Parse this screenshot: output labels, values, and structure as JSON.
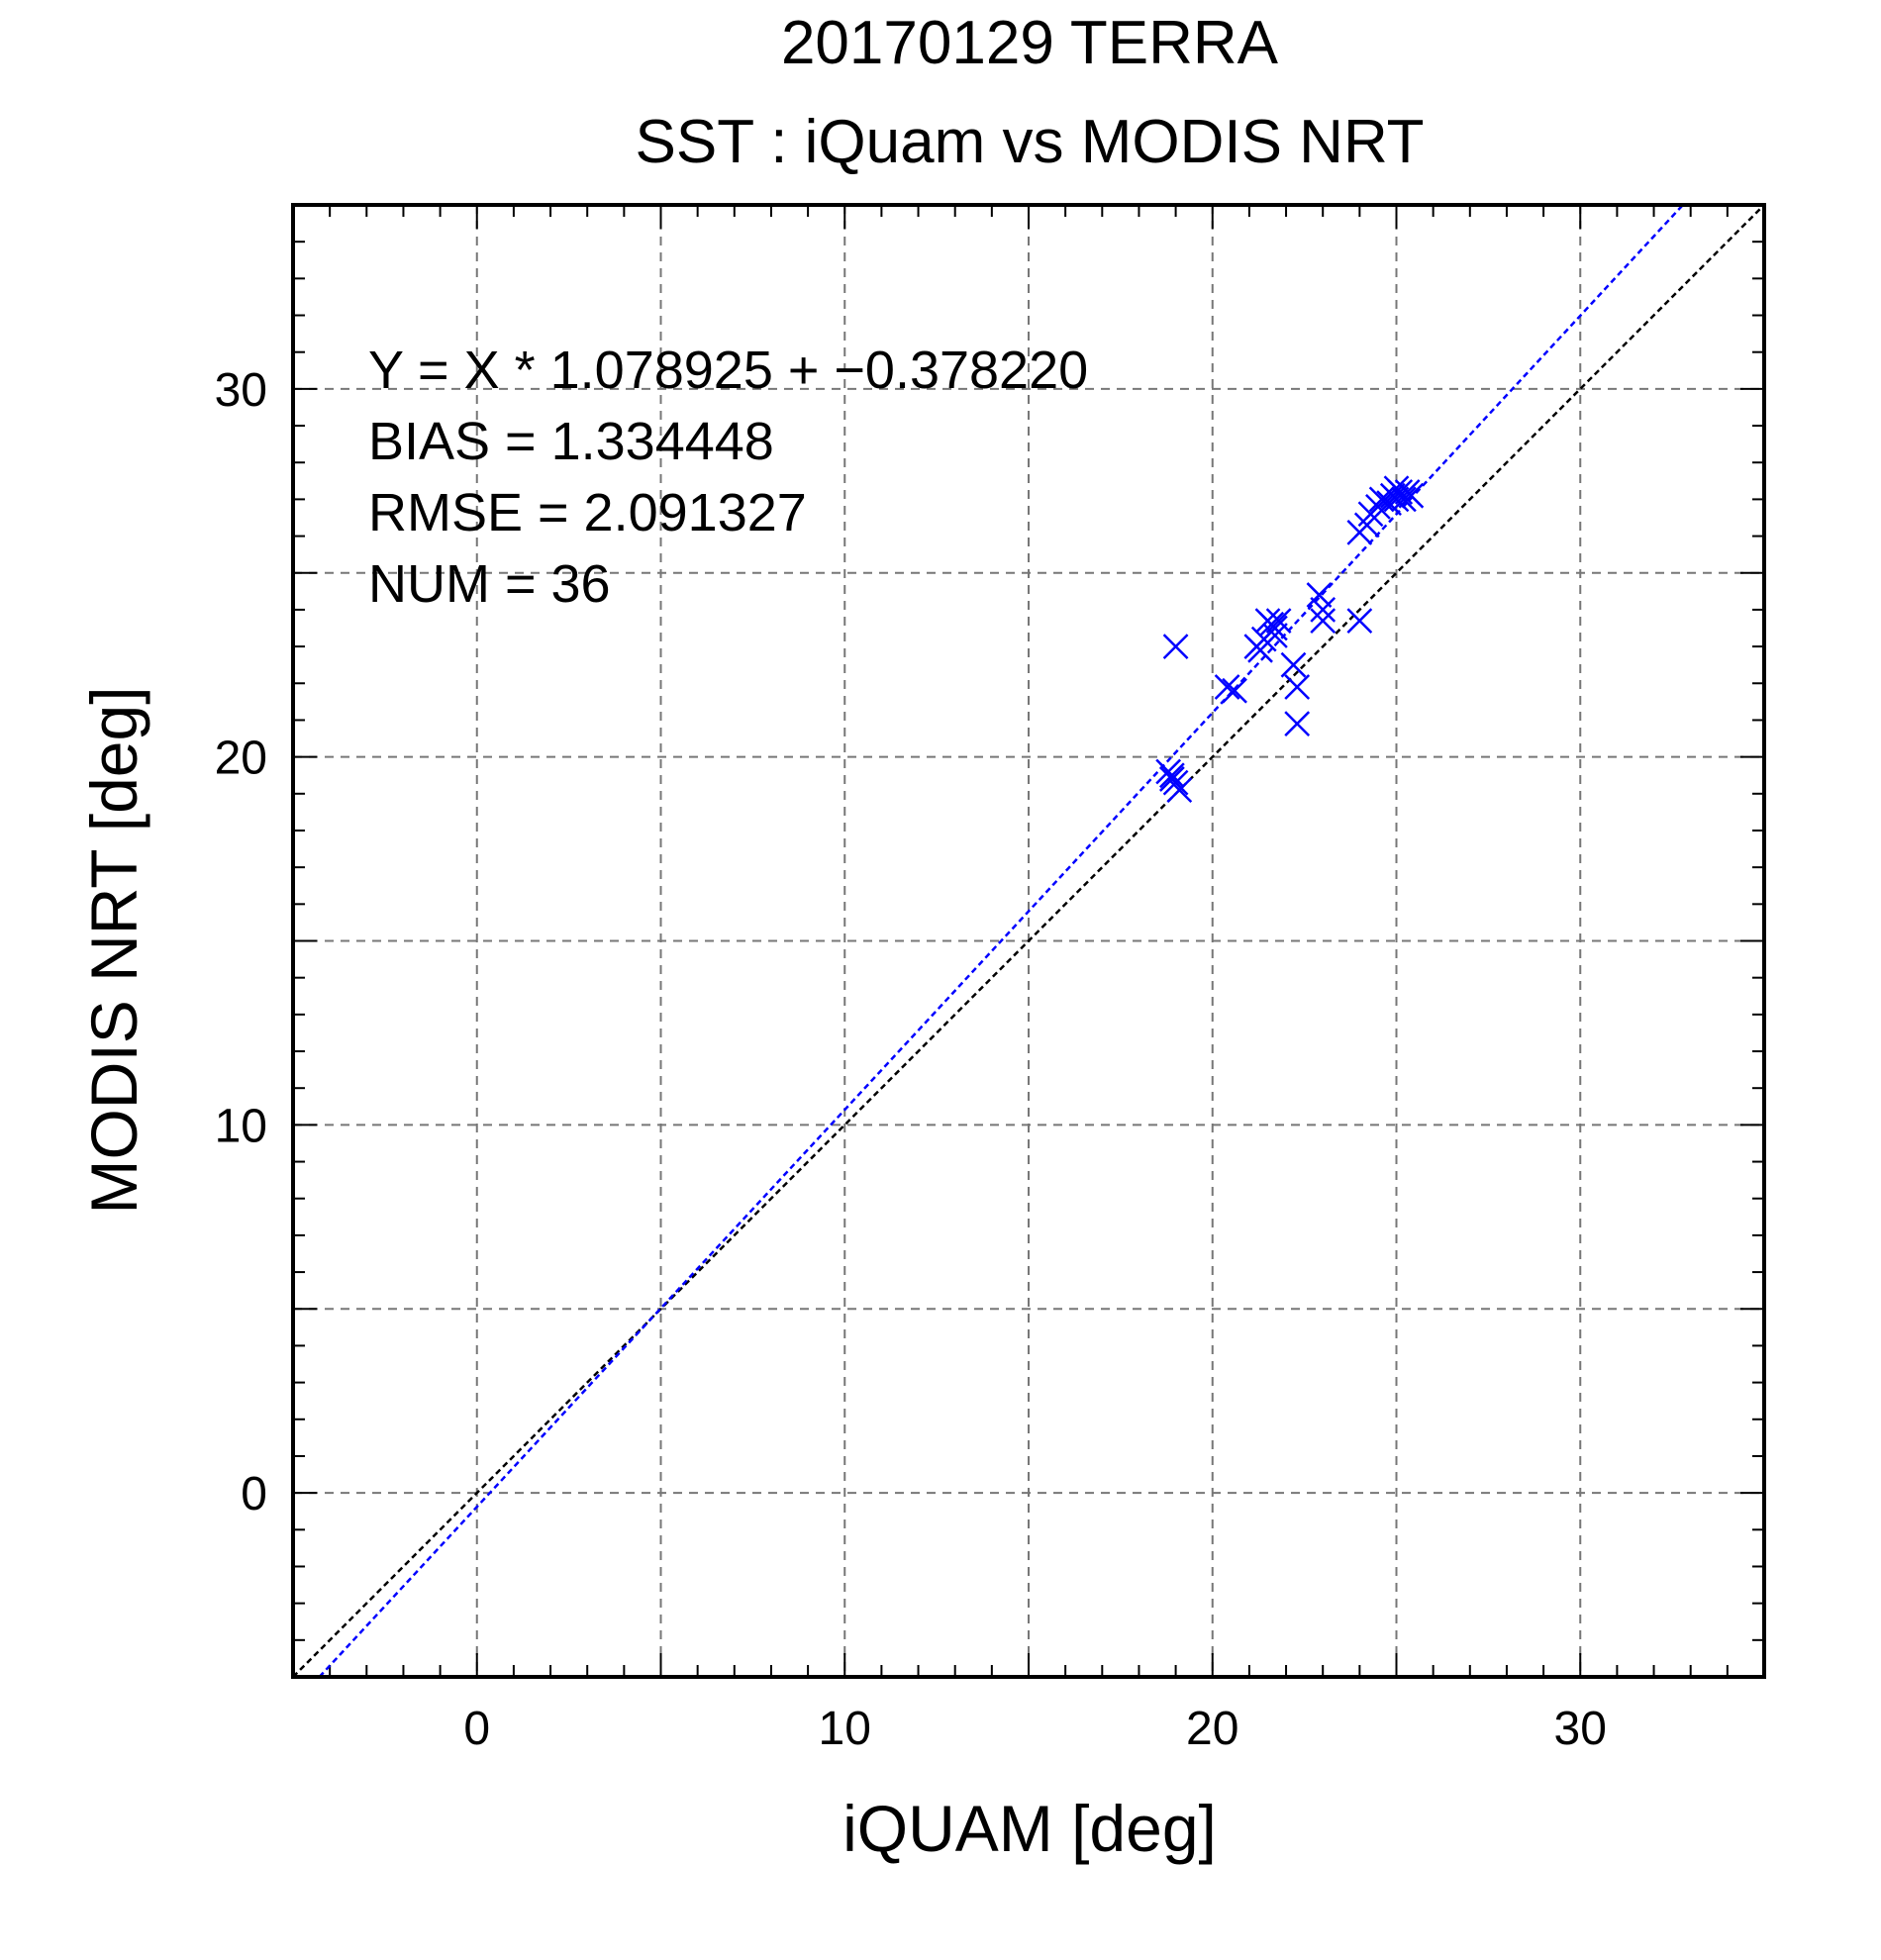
{
  "chart_data": {
    "type": "scatter",
    "title": "20170129 TERRA",
    "subtitle": "SST : iQuam vs MODIS NRT",
    "xlabel": "iQUAM [deg]",
    "ylabel": "MODIS NRT [deg]",
    "xlim": [
      -5,
      35
    ],
    "ylim": [
      -5,
      35
    ],
    "xticks": [
      0,
      10,
      20,
      30
    ],
    "yticks": [
      0,
      10,
      20,
      30
    ],
    "x_tick_labels": [
      "0",
      "10",
      "20",
      "30"
    ],
    "y_tick_labels": [
      "0",
      "10",
      "20",
      "30"
    ],
    "grid": true,
    "stats": [
      "Y = X * 1.078925 + −0.378220",
      "BIAS = 1.334448",
      "RMSE = 2.091327",
      "NUM = 36"
    ],
    "fit_line": {
      "slope": 1.078925,
      "intercept": -0.37822,
      "color": "#0000ff"
    },
    "identity_line": {
      "slope": 1,
      "intercept": 0,
      "color": "#000000"
    },
    "marker_color": "#0000ff",
    "points": [
      {
        "x": 19.0,
        "y": 23.0
      },
      {
        "x": 18.8,
        "y": 19.6
      },
      {
        "x": 18.9,
        "y": 19.5
      },
      {
        "x": 19.0,
        "y": 19.3
      },
      {
        "x": 19.1,
        "y": 19.1
      },
      {
        "x": 18.9,
        "y": 19.4
      },
      {
        "x": 20.4,
        "y": 21.9
      },
      {
        "x": 20.6,
        "y": 21.8
      },
      {
        "x": 21.2,
        "y": 23.0
      },
      {
        "x": 21.3,
        "y": 22.9
      },
      {
        "x": 21.4,
        "y": 23.2
      },
      {
        "x": 21.5,
        "y": 23.7
      },
      {
        "x": 21.6,
        "y": 23.6
      },
      {
        "x": 21.7,
        "y": 23.5
      },
      {
        "x": 21.8,
        "y": 23.7
      },
      {
        "x": 21.7,
        "y": 23.3
      },
      {
        "x": 22.2,
        "y": 22.5
      },
      {
        "x": 22.3,
        "y": 21.9
      },
      {
        "x": 22.3,
        "y": 20.9
      },
      {
        "x": 22.9,
        "y": 24.4
      },
      {
        "x": 23.0,
        "y": 24.0
      },
      {
        "x": 23.0,
        "y": 23.7
      },
      {
        "x": 24.0,
        "y": 23.7
      },
      {
        "x": 24.0,
        "y": 26.1
      },
      {
        "x": 24.2,
        "y": 26.3
      },
      {
        "x": 24.3,
        "y": 26.6
      },
      {
        "x": 24.5,
        "y": 26.8
      },
      {
        "x": 24.6,
        "y": 27.0
      },
      {
        "x": 24.8,
        "y": 26.9
      },
      {
        "x": 24.9,
        "y": 27.1
      },
      {
        "x": 25.0,
        "y": 27.0
      },
      {
        "x": 25.1,
        "y": 27.2
      },
      {
        "x": 25.2,
        "y": 27.0
      },
      {
        "x": 25.3,
        "y": 27.2
      },
      {
        "x": 25.4,
        "y": 27.1
      },
      {
        "x": 25.0,
        "y": 27.3
      }
    ]
  }
}
